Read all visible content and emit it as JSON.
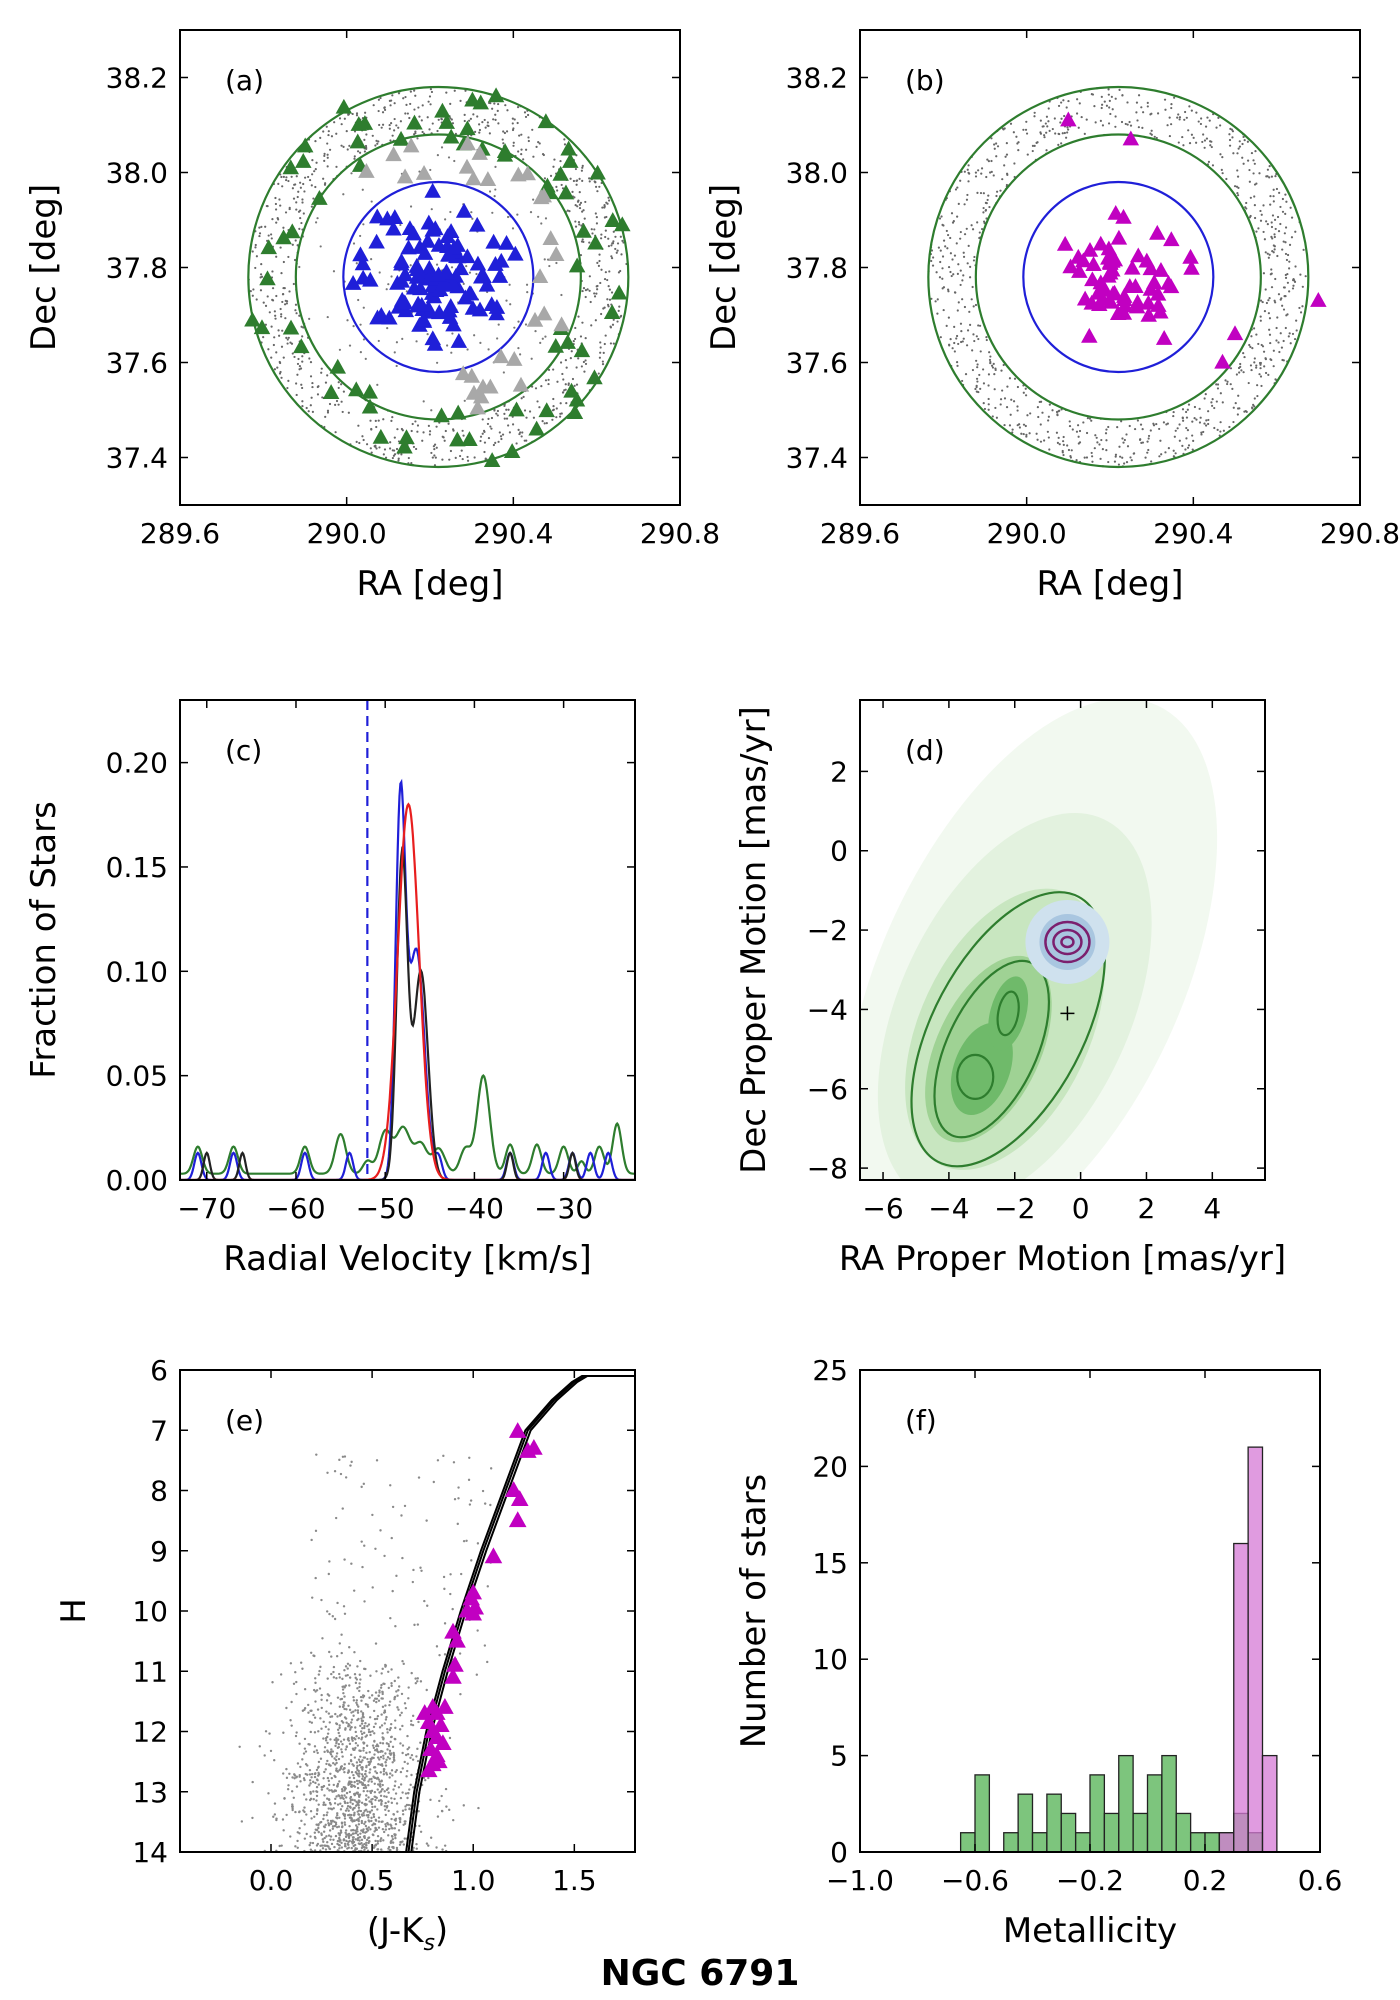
{
  "figure": {
    "title": "NGC 6791"
  },
  "colors": {
    "member_blue": "#1f1fd8",
    "member_magenta": "#c100c1",
    "field_green": "#2e7d2e",
    "gray": "#a8a8a8",
    "black": "#222222",
    "red": "#e81e1e",
    "purple": "#7b1f6e"
  },
  "chart_data": [
    {
      "id": "a",
      "panel_label": "(a)",
      "type": "scatter",
      "xlabel": "RA [deg]",
      "ylabel": "Dec [deg]",
      "xlim": [
        289.6,
        290.8
      ],
      "ylim": [
        37.3,
        38.3
      ],
      "xticks": [
        289.6,
        290.0,
        290.4,
        290.8
      ],
      "xtick_labels": [
        "289.6",
        "290.0",
        "290.4",
        "290.8"
      ],
      "yticks": [
        37.4,
        37.6,
        37.8,
        38.0,
        38.2
      ],
      "ytick_labels": [
        "37.4",
        "37.6",
        "37.8",
        "38.0",
        "38.2"
      ],
      "center": [
        290.22,
        37.78
      ],
      "circles": [
        {
          "name": "inner",
          "radius_deg": 0.2,
          "color": "#1f1fd8"
        },
        {
          "name": "annulus-inner",
          "radius_deg": 0.3,
          "color": "#2e7d2e"
        },
        {
          "name": "annulus-outer",
          "radius_deg": 0.4,
          "color": "#2e7d2e"
        }
      ],
      "series": [
        {
          "name": "field dots",
          "marker": "dot",
          "color": "#666666"
        },
        {
          "name": "members",
          "marker": "triangle",
          "color": "#1f1fd8",
          "count": 115
        },
        {
          "name": "non-members",
          "marker": "triangle",
          "color": "#a8a8a8",
          "count": 30
        },
        {
          "name": "background",
          "marker": "triangle",
          "color": "#2e7d2e",
          "count": 70
        }
      ]
    },
    {
      "id": "b",
      "panel_label": "(b)",
      "type": "scatter",
      "xlabel": "RA [deg]",
      "ylabel": "Dec [deg]",
      "xlim": [
        289.6,
        290.8
      ],
      "ylim": [
        37.3,
        38.3
      ],
      "xticks": [
        289.6,
        290.0,
        290.4,
        290.8
      ],
      "xtick_labels": [
        "289.6",
        "290.0",
        "290.4",
        "290.8"
      ],
      "yticks": [
        37.4,
        37.6,
        37.8,
        38.0,
        38.2
      ],
      "ytick_labels": [
        "37.4",
        "37.6",
        "37.8",
        "38.0",
        "38.2"
      ],
      "center": [
        290.22,
        37.78
      ],
      "circles": [
        {
          "name": "inner",
          "radius_deg": 0.2,
          "color": "#1f1fd8"
        },
        {
          "name": "annulus-inner",
          "radius_deg": 0.3,
          "color": "#2e7d2e"
        },
        {
          "name": "annulus-outer",
          "radius_deg": 0.4,
          "color": "#2e7d2e"
        }
      ],
      "series": [
        {
          "name": "field dots",
          "marker": "dot",
          "color": "#666666"
        },
        {
          "name": "final members",
          "marker": "triangle",
          "color": "#c100c1",
          "count": 60
        }
      ],
      "outlier_points": [
        [
          290.1,
          38.11
        ],
        [
          290.25,
          38.07
        ],
        [
          290.7,
          37.73
        ],
        [
          290.5,
          37.66
        ],
        [
          290.47,
          37.6
        ],
        [
          290.33,
          37.65
        ]
      ]
    },
    {
      "id": "c",
      "panel_label": "(c)",
      "type": "line",
      "xlabel": "Radial Velocity [km/s]",
      "ylabel": "Fraction of Stars",
      "xlim": [
        -73,
        -22
      ],
      "ylim": [
        0,
        0.23
      ],
      "xticks": [
        -70,
        -60,
        -50,
        -40,
        -30
      ],
      "xtick_labels": [
        "−70",
        "−60",
        "−50",
        "−40",
        "−30"
      ],
      "yticks": [
        0,
        0.05,
        0.1,
        0.15,
        0.2
      ],
      "ytick_labels": [
        "0.00",
        "0.05",
        "0.10",
        "0.15",
        "0.20"
      ],
      "vline": {
        "x": -52,
        "color": "#1f1fd8",
        "style": "dashed"
      },
      "series": [
        {
          "name": "green",
          "color": "#2e7d2e",
          "baseline": 0.003,
          "peaks": [
            [
              -71,
              0.013,
              0.5
            ],
            [
              -67,
              0.013,
              0.5
            ],
            [
              -59,
              0.013,
              0.5
            ],
            [
              -55,
              0.019,
              0.6
            ],
            [
              -52,
              0.006,
              0.5
            ],
            [
              -50,
              0.02,
              0.7
            ],
            [
              -48,
              0.022,
              0.8
            ],
            [
              -46,
              0.014,
              0.7
            ],
            [
              -44,
              0.012,
              0.7
            ],
            [
              -41,
              0.012,
              0.6
            ],
            [
              -39,
              0.047,
              0.7
            ],
            [
              -36,
              0.014,
              0.5
            ],
            [
              -33,
              0.014,
              0.5
            ],
            [
              -30,
              0.013,
              0.5
            ],
            [
              -28,
              0.006,
              0.4
            ],
            [
              -26,
              0.013,
              0.5
            ],
            [
              -24,
              0.024,
              0.5
            ]
          ]
        },
        {
          "name": "blue",
          "color": "#1f1fd8",
          "baseline": 0,
          "peaks": [
            [
              -71,
              0.013,
              0.4
            ],
            [
              -67,
              0.013,
              0.4
            ],
            [
              -59,
              0.013,
              0.4
            ],
            [
              -54,
              0.013,
              0.4
            ],
            [
              -48.3,
              0.175,
              0.55
            ],
            [
              -46.5,
              0.11,
              0.9
            ],
            [
              -44,
              0.01,
              0.4
            ],
            [
              -36,
              0.013,
              0.4
            ],
            [
              -32,
              0.013,
              0.4
            ],
            [
              -29,
              0.013,
              0.4
            ],
            [
              -27,
              0.013,
              0.4
            ],
            [
              -25,
              0.013,
              0.4
            ]
          ]
        },
        {
          "name": "black",
          "color": "#222222",
          "baseline": 0,
          "peaks": [
            [
              -70,
              0.013,
              0.35
            ],
            [
              -66,
              0.013,
              0.35
            ],
            [
              -48.1,
              0.155,
              0.6
            ],
            [
              -46,
              0.1,
              0.8
            ],
            [
              -36,
              0.013,
              0.35
            ],
            [
              -29,
              0.013,
              0.35
            ]
          ]
        },
        {
          "name": "red",
          "color": "#e81e1e",
          "baseline": 0,
          "peaks": [
            [
              -47.4,
              0.18,
              1.2
            ]
          ]
        }
      ]
    },
    {
      "id": "d",
      "panel_label": "(d)",
      "type": "heatmap",
      "xlabel": "RA Proper Motion [mas/yr]",
      "ylabel": "Dec Proper Motion [mas/yr]",
      "xlim": [
        -6.7,
        5.6
      ],
      "ylim": [
        -8.3,
        3.8
      ],
      "xticks": [
        -6,
        -4,
        -2,
        0,
        2,
        4
      ],
      "xtick_labels": [
        "−6",
        "−4",
        "−2",
        "0",
        "2",
        "4"
      ],
      "yticks": [
        -8,
        -6,
        -4,
        -2,
        0,
        2
      ],
      "ytick_labels": [
        "−8",
        "−6",
        "−4",
        "−2",
        "0",
        "2"
      ],
      "cluster_center": [
        -0.4,
        -2.3
      ],
      "field_peaks": [
        [
          -3.2,
          -5.7
        ],
        [
          -2.2,
          -4.2
        ]
      ],
      "plus_marker": [
        -0.4,
        -4.1
      ]
    },
    {
      "id": "e",
      "panel_label": "(e)",
      "type": "scatter",
      "xlabel": "(J-K",
      "xlabel_sub": "s",
      "xlabel_end": ")",
      "ylabel": "H",
      "xlim": [
        -0.45,
        1.8
      ],
      "ylim": [
        14,
        6
      ],
      "xticks": [
        0.0,
        0.5,
        1.0,
        1.5
      ],
      "xtick_labels": [
        "0.0",
        "0.5",
        "1.0",
        "1.5"
      ],
      "yticks": [
        6,
        7,
        8,
        9,
        10,
        11,
        12,
        13,
        14
      ],
      "ytick_labels": [
        "6",
        "7",
        "8",
        "9",
        "10",
        "11",
        "12",
        "13",
        "14"
      ],
      "isochrone": [
        [
          0.68,
          14.0
        ],
        [
          0.72,
          13.0
        ],
        [
          0.78,
          12.0
        ],
        [
          0.86,
          11.0
        ],
        [
          0.95,
          10.0
        ],
        [
          1.05,
          9.0
        ],
        [
          1.16,
          8.0
        ],
        [
          1.27,
          7.0
        ],
        [
          1.4,
          6.5
        ],
        [
          1.5,
          6.2
        ],
        [
          1.55,
          6.1
        ],
        [
          1.8,
          6.1
        ]
      ],
      "members": [
        [
          1.22,
          7.02
        ],
        [
          1.3,
          7.3
        ],
        [
          1.27,
          7.35
        ],
        [
          1.2,
          8.0
        ],
        [
          1.23,
          8.15
        ],
        [
          1.22,
          8.5
        ],
        [
          1.1,
          9.1
        ],
        [
          1.0,
          9.7
        ],
        [
          0.99,
          9.8
        ],
        [
          1.01,
          9.95
        ],
        [
          1.0,
          10.05
        ],
        [
          0.97,
          10.0
        ],
        [
          0.9,
          10.35
        ],
        [
          0.92,
          10.5
        ],
        [
          0.91,
          10.9
        ],
        [
          0.9,
          11.1
        ],
        [
          0.8,
          11.6
        ],
        [
          0.82,
          11.7
        ],
        [
          0.86,
          11.6
        ],
        [
          0.76,
          11.7
        ],
        [
          0.78,
          11.85
        ],
        [
          0.84,
          11.9
        ],
        [
          0.8,
          12.0
        ],
        [
          0.82,
          12.1
        ],
        [
          0.85,
          12.2
        ],
        [
          0.79,
          12.3
        ],
        [
          0.82,
          12.4
        ],
        [
          0.8,
          12.55
        ],
        [
          0.78,
          12.65
        ],
        [
          0.83,
          12.5
        ]
      ],
      "member_color": "#c100c1"
    },
    {
      "id": "f",
      "panel_label": "(f)",
      "type": "bar",
      "xlabel": "Metallicity",
      "ylabel": "Number of stars",
      "xlim": [
        -1.0,
        0.6
      ],
      "ylim": [
        0,
        25
      ],
      "xticks": [
        -1.0,
        -0.6,
        -0.2,
        0.2,
        0.6
      ],
      "xtick_labels": [
        "−1.0",
        "−0.6",
        "−0.2",
        "0.2",
        "0.6"
      ],
      "yticks": [
        0,
        5,
        10,
        15,
        20,
        25
      ],
      "ytick_labels": [
        "0",
        "5",
        "10",
        "15",
        "20",
        "25"
      ],
      "bin_width": 0.05,
      "series": [
        {
          "name": "field",
          "color": "#52b152",
          "bin_starts": [
            -0.65,
            -0.6,
            -0.55,
            -0.5,
            -0.45,
            -0.4,
            -0.35,
            -0.3,
            -0.25,
            -0.2,
            -0.15,
            -0.1,
            -0.05,
            0.0,
            0.05,
            0.1,
            0.15,
            0.2,
            0.25,
            0.3,
            0.35,
            0.4
          ],
          "values": [
            1,
            4,
            0,
            1,
            3,
            1,
            3,
            2,
            1,
            4,
            2,
            5,
            2,
            4,
            5,
            2,
            1,
            1,
            1,
            2,
            1,
            0
          ]
        },
        {
          "name": "members",
          "color": "#d67ad6",
          "bin_starts": [
            0.25,
            0.3,
            0.35,
            0.4
          ],
          "values": [
            1,
            16,
            21,
            5
          ]
        }
      ]
    }
  ]
}
